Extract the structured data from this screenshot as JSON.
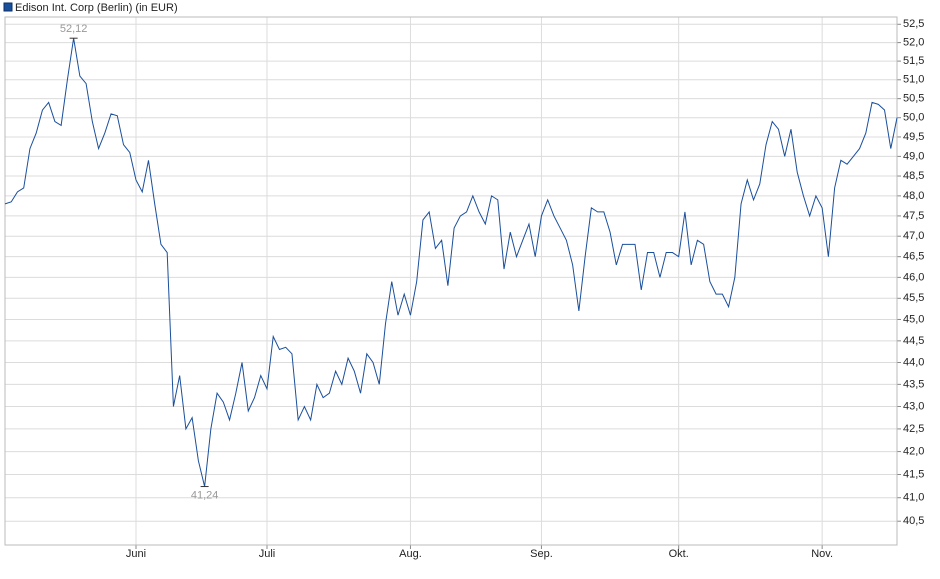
{
  "chart_data": {
    "type": "line",
    "log_scale": true,
    "grid": true,
    "categories": [
      null,
      null,
      null,
      null,
      null,
      null,
      null,
      null,
      null,
      null,
      null,
      null,
      null,
      null,
      null,
      null,
      null,
      null,
      null,
      null,
      null,
      "Juni",
      null,
      null,
      null,
      null,
      null,
      null,
      null,
      null,
      null,
      null,
      null,
      null,
      null,
      null,
      null,
      null,
      null,
      null,
      null,
      null,
      "Juli",
      null,
      null,
      null,
      null,
      null,
      null,
      null,
      null,
      null,
      null,
      null,
      null,
      null,
      null,
      null,
      null,
      null,
      null,
      null,
      null,
      null,
      null,
      "Aug.",
      null,
      null,
      null,
      null,
      null,
      null,
      null,
      null,
      null,
      null,
      null,
      null,
      null,
      null,
      null,
      null,
      null,
      null,
      null,
      null,
      "Sep.",
      null,
      null,
      null,
      null,
      null,
      null,
      null,
      null,
      null,
      null,
      null,
      null,
      null,
      null,
      null,
      null,
      null,
      null,
      null,
      null,
      null,
      "Okt.",
      null,
      null,
      null,
      null,
      null,
      null,
      null,
      null,
      null,
      null,
      null,
      null,
      null,
      null,
      null,
      null,
      null,
      null,
      null,
      null,
      null,
      null,
      "Nov.",
      null,
      null,
      null,
      null,
      null,
      null,
      null,
      null,
      null,
      null,
      null,
      null
    ],
    "series": [
      {
        "name": "Edison Int. Corp (Berlin) (in EUR)",
        "color": "#1a4f9c",
        "values": [
          47.8,
          47.85,
          48.1,
          48.2,
          49.2,
          49.6,
          50.2,
          50.4,
          49.9,
          49.8,
          51.0,
          52.12,
          51.1,
          50.9,
          49.9,
          49.2,
          49.6,
          50.1,
          50.05,
          49.3,
          49.1,
          48.4,
          48.1,
          48.9,
          47.8,
          46.8,
          46.6,
          43.0,
          43.7,
          42.5,
          42.75,
          41.8,
          41.24,
          42.5,
          43.3,
          43.1,
          42.7,
          43.3,
          44.0,
          42.9,
          43.2,
          43.7,
          43.4,
          44.6,
          44.3,
          44.35,
          44.2,
          42.7,
          43.0,
          42.7,
          43.5,
          43.2,
          43.3,
          43.8,
          43.5,
          44.1,
          43.8,
          43.3,
          44.2,
          44.0,
          43.5,
          44.9,
          45.9,
          45.1,
          45.6,
          45.1,
          45.9,
          47.4,
          47.6,
          46.7,
          46.9,
          45.8,
          47.2,
          47.5,
          47.6,
          48.0,
          47.6,
          47.3,
          48.0,
          47.9,
          46.2,
          47.1,
          46.5,
          46.9,
          47.3,
          46.5,
          47.5,
          47.9,
          47.5,
          47.2,
          46.9,
          46.3,
          45.2,
          46.5,
          47.7,
          47.6,
          47.6,
          47.1,
          46.3,
          46.8,
          46.8,
          46.8,
          45.7,
          46.6,
          46.6,
          46.0,
          46.6,
          46.6,
          46.5,
          47.6,
          46.3,
          46.9,
          46.8,
          45.9,
          45.6,
          45.6,
          45.3,
          46.0,
          47.8,
          48.4,
          47.9,
          48.3,
          49.3,
          49.9,
          49.7,
          49.0,
          49.7,
          48.6,
          48.0,
          47.5,
          48.0,
          47.7,
          46.5,
          48.2,
          48.9,
          48.8,
          49.0,
          49.2,
          49.6,
          50.4,
          50.35,
          50.2,
          49.2,
          50.0
        ]
      }
    ],
    "high": {
      "value": 52.12,
      "label": "52,12"
    },
    "low": {
      "value": 41.24,
      "label": "41,24"
    },
    "ylim": [
      40.0,
      52.7
    ],
    "yticks": [
      {
        "value": 40.5,
        "label": "40,5"
      },
      {
        "value": 41,
        "label": "41,0"
      },
      {
        "value": 41.5,
        "label": "41,5"
      },
      {
        "value": 42,
        "label": "42,0"
      },
      {
        "value": 42.5,
        "label": "42,5"
      },
      {
        "value": 43,
        "label": "43,0"
      },
      {
        "value": 43.5,
        "label": "43,5"
      },
      {
        "value": 44,
        "label": "44,0"
      },
      {
        "value": 44.5,
        "label": "44,5"
      },
      {
        "value": 45,
        "label": "45,0"
      },
      {
        "value": 45.5,
        "label": "45,5"
      },
      {
        "value": 46,
        "label": "46,0"
      },
      {
        "value": 46.5,
        "label": "46,5"
      },
      {
        "value": 47,
        "label": "47,0"
      },
      {
        "value": 47.5,
        "label": "47,5"
      },
      {
        "value": 48,
        "label": "48,0"
      },
      {
        "value": 48.5,
        "label": "48,5"
      },
      {
        "value": 49,
        "label": "49,0"
      },
      {
        "value": 49.5,
        "label": "49,5"
      },
      {
        "value": 50,
        "label": "50,0"
      },
      {
        "value": 50.5,
        "label": "50,5"
      },
      {
        "value": 51,
        "label": "51,0"
      },
      {
        "value": 51.5,
        "label": "51,5"
      },
      {
        "value": 52,
        "label": "52,0"
      },
      {
        "value": 52.5,
        "label": "52,5"
      }
    ]
  }
}
